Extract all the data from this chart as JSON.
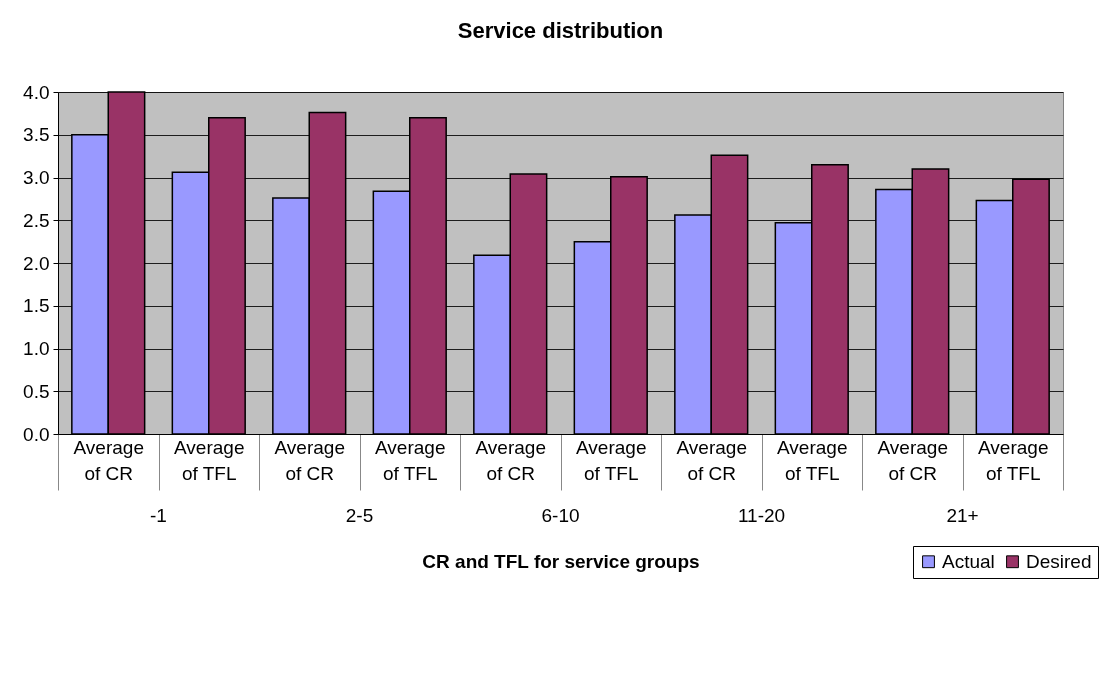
{
  "chart_data": {
    "type": "bar",
    "title": "Service distribution",
    "xlabel": "CR and TFL for service groups",
    "categories": [
      "Average of CR",
      "Average of TFL",
      "Average of CR",
      "Average of TFL",
      "Average of CR",
      "Average of TFL",
      "Average of CR",
      "Average of TFL",
      "Average of CR",
      "Average of TFL"
    ],
    "annotations": [
      "-1",
      "2-5",
      "6-10",
      "11-20",
      "21+"
    ],
    "series": [
      {
        "name": "Actual",
        "color": "#9999ff",
        "values": [
          3.5,
          3.06,
          2.76,
          2.84,
          2.09,
          2.25,
          2.56,
          2.47,
          2.86,
          2.73
        ]
      },
      {
        "name": "Desired",
        "color": "#993366",
        "values": [
          4.0,
          3.7,
          3.76,
          3.7,
          3.04,
          3.01,
          3.26,
          3.15,
          3.1,
          2.98
        ]
      }
    ],
    "ylim": [
      0,
      4
    ],
    "yticks": [
      {
        "value": 0,
        "label": "0.0"
      },
      {
        "value": 0.5,
        "label": "0.5"
      },
      {
        "value": 1,
        "label": "1.0"
      },
      {
        "value": 1.5,
        "label": "1.5"
      },
      {
        "value": 2,
        "label": "2.0"
      },
      {
        "value": 2.5,
        "label": "2.5"
      },
      {
        "value": 3,
        "label": "3.0"
      },
      {
        "value": 3.5,
        "label": "3.5"
      },
      {
        "value": 4,
        "label": "4.0"
      }
    ],
    "grid": "y",
    "legend": "bottom right"
  }
}
